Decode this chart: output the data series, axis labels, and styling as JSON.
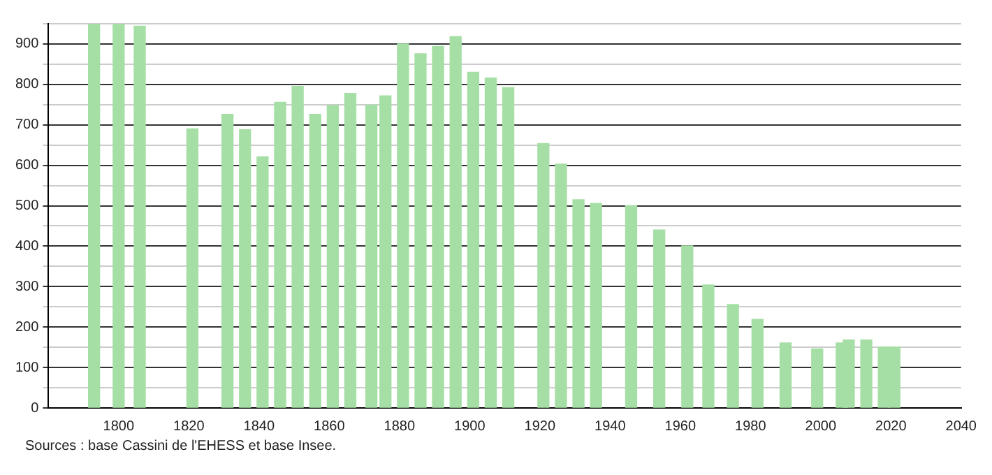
{
  "chart_data": {
    "type": "bar",
    "x": [
      1793,
      1800,
      1806,
      1821,
      1831,
      1836,
      1841,
      1846,
      1851,
      1856,
      1861,
      1866,
      1872,
      1876,
      1881,
      1886,
      1891,
      1896,
      1901,
      1906,
      1911,
      1921,
      1926,
      1931,
      1936,
      1946,
      1954,
      1962,
      1968,
      1975,
      1982,
      1990,
      1999,
      2006,
      2008,
      2013,
      2018,
      2021
    ],
    "values": [
      950,
      950,
      944,
      690,
      726,
      688,
      621,
      756,
      795,
      726,
      748,
      778,
      749,
      772,
      900,
      876,
      894,
      918,
      830,
      816,
      792,
      654,
      603,
      515,
      506,
      500,
      440,
      401,
      304,
      256,
      219,
      161,
      146,
      161,
      168,
      168,
      151,
      151
    ],
    "color": "#a6dfa6",
    "xlim": [
      1780,
      2040
    ],
    "xticks": [
      1800,
      1820,
      1840,
      1860,
      1880,
      1900,
      1920,
      1940,
      1960,
      1980,
      2000,
      2020,
      2040
    ],
    "ylim": [
      0,
      950
    ],
    "yticks": [
      0,
      {
        "value": 50,
        "label": null
      },
      100,
      {
        "value": 150,
        "label": null
      },
      200,
      {
        "value": 250,
        "label": null
      },
      300,
      {
        "value": 350,
        "label": null
      },
      400,
      {
        "value": 450,
        "label": null
      },
      500,
      {
        "value": 550,
        "label": null
      },
      600,
      {
        "value": 650,
        "label": null
      },
      700,
      {
        "value": 750,
        "label": null
      },
      800,
      {
        "value": 850,
        "label": null
      },
      900,
      {
        "value": 950,
        "label": null
      }
    ],
    "grid": "y",
    "annotations": [
      "Sources : base Cassini de l'EHESS et base Insee."
    ]
  }
}
